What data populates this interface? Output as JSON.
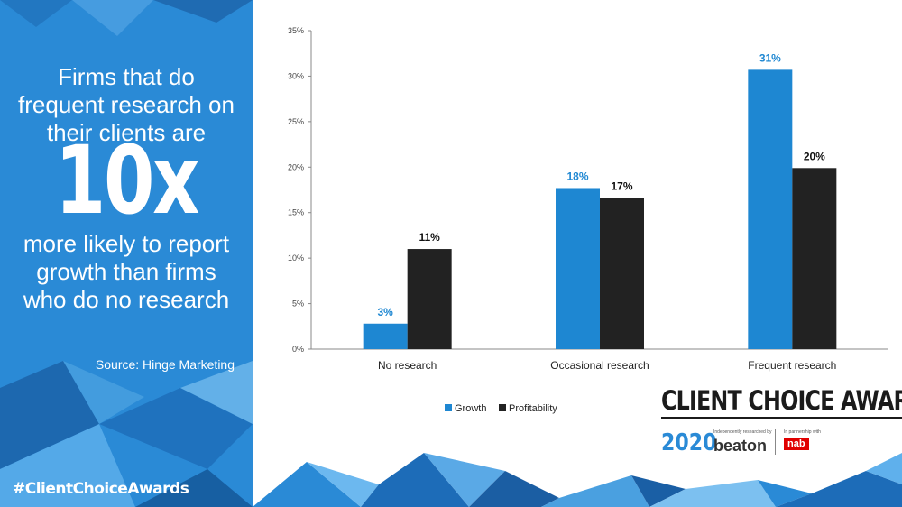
{
  "panel": {
    "headline_top_lines": [
      "Firms that do",
      "frequent research on",
      "their clients are"
    ],
    "headline_big": "10x",
    "headline_bottom_lines": [
      "more likely to report",
      "growth than firms",
      "who do no research"
    ],
    "source": "Source: Hinge Marketing",
    "hashtag": "#ClientChoiceAwards",
    "colors": {
      "panel_blue": "#2a8ad6"
    }
  },
  "logo": {
    "title": "CLIENT CHOICE AWARDS",
    "year": "2020",
    "independently_text": "Independently researched by",
    "beaton": "beaton",
    "partnership_text": "In partnership with",
    "nab": "nab"
  },
  "chart_data": {
    "type": "bar",
    "categories": [
      "No research",
      "Occasional research",
      "Frequent research"
    ],
    "series": [
      {
        "name": "Growth",
        "values": [
          2.8,
          17.7,
          30.7
        ],
        "labels": [
          "3%",
          "18%",
          "31%"
        ],
        "color": "#1e87d2"
      },
      {
        "name": "Profitability",
        "values": [
          11.0,
          16.6,
          19.9
        ],
        "labels": [
          "11%",
          "17%",
          "20%"
        ],
        "color": "#222222"
      }
    ],
    "yticks": [
      "0%",
      "5%",
      "10%",
      "15%",
      "20%",
      "25%",
      "30%",
      "35%"
    ],
    "ylim": [
      0,
      35
    ],
    "legend": "bottom"
  }
}
